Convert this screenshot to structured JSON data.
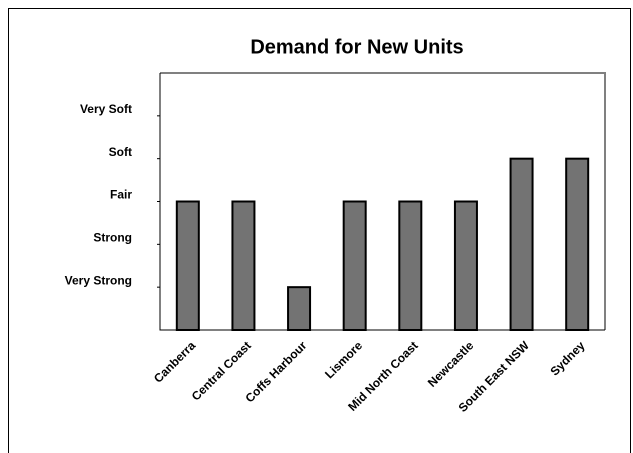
{
  "chart_data": {
    "type": "bar",
    "title": "Demand for New Units",
    "categories": [
      "Canberra",
      "Central Coast",
      "Coffs Harbour",
      "Lismore",
      "Mid North Coast",
      "Newcastle",
      "South East NSW",
      "Sydney"
    ],
    "values": [
      3,
      3,
      1,
      3,
      3,
      3,
      4,
      4
    ],
    "color": "#737373",
    "ylim": [
      0,
      6
    ],
    "yticks": [
      {
        "value": 1,
        "label": "Very Strong"
      },
      {
        "value": 2,
        "label": "Strong"
      },
      {
        "value": 3,
        "label": "Fair"
      },
      {
        "value": 4,
        "label": "Soft"
      },
      {
        "value": 5,
        "label": "Very Soft"
      }
    ],
    "grid": false
  }
}
